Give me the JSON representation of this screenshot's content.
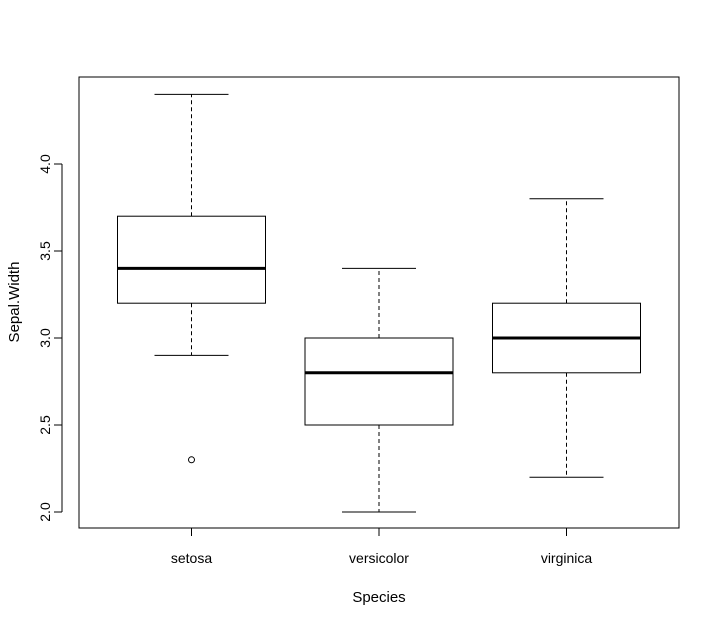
{
  "chart_data": {
    "type": "boxplot",
    "title": "",
    "xlabel": "Species",
    "ylabel": "Sepal.Width",
    "ylim": [
      1.9,
      4.49
    ],
    "yticks": [
      "2.0",
      "2.5",
      "3.0",
      "3.5",
      "4.0"
    ],
    "grid": false,
    "categories": [
      "setosa",
      "versicolor",
      "virginica"
    ],
    "boxes": [
      {
        "whisker_low": 2.9,
        "q1": 3.2,
        "median": 3.4,
        "q3": 3.7,
        "whisker_high": 4.4,
        "outliers": [
          2.3
        ]
      },
      {
        "whisker_low": 2.0,
        "q1": 2.5,
        "median": 2.8,
        "q3": 3.0,
        "whisker_high": 3.4,
        "outliers": []
      },
      {
        "whisker_low": 2.2,
        "q1": 2.8,
        "median": 3.0,
        "q3": 3.2,
        "whisker_high": 3.8,
        "outliers": []
      }
    ],
    "colors": {
      "stroke": "#000000",
      "fill": "#ffffff"
    }
  }
}
